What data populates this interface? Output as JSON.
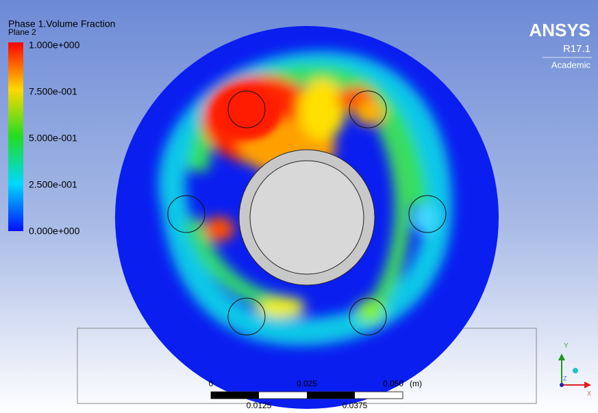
{
  "legend": {
    "title": "Phase 1.Volume Fraction",
    "subtitle": "Plane 2",
    "labels": [
      "1.000e+000",
      "7.500e-001",
      "5.000e-001",
      "2.500e-001",
      "0.000e+000"
    ]
  },
  "logo": {
    "brand": "ANSYS",
    "version": "R17.1",
    "edition": "Academic"
  },
  "scale_bar": {
    "top_labels": [
      "0",
      "0.025",
      "0.050"
    ],
    "unit": "(m)",
    "bottom_labels": [
      "0.0125",
      "0.0375"
    ]
  },
  "triad": {
    "y": "Y",
    "z": "Z",
    "x": "X"
  }
}
